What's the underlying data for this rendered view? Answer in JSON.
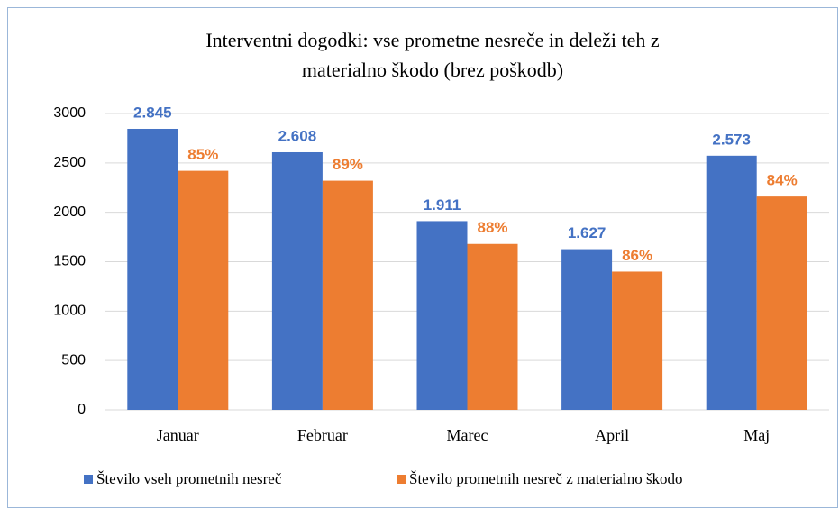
{
  "chart_data": {
    "type": "bar",
    "title": [
      "Interventni dogodki:  vse prometne nesreče in deleži teh z",
      "materialno škodo (brez poškodb)"
    ],
    "categories": [
      "Januar",
      "Februar",
      "Marec",
      "April",
      "Maj"
    ],
    "series": [
      {
        "name": "Število vseh prometnih nesreč",
        "color": "#4472c4",
        "values": [
          2845,
          2608,
          1911,
          1627,
          2573
        ],
        "value_labels": [
          "2.845",
          "2.608",
          "1.911",
          "1.627",
          "2.573"
        ]
      },
      {
        "name": "Število  prometnih nesreč z materialno škodo",
        "color": "#ed7d31",
        "values": [
          2420,
          2320,
          1680,
          1400,
          2160
        ],
        "share_labels": [
          "85%",
          "89%",
          "88%",
          "86%",
          "84%"
        ]
      }
    ],
    "ylim": [
      0,
      3000
    ],
    "yticks": [
      0,
      500,
      1000,
      1500,
      2000,
      2500,
      3000
    ],
    "grid": true,
    "legend": "bottom"
  }
}
